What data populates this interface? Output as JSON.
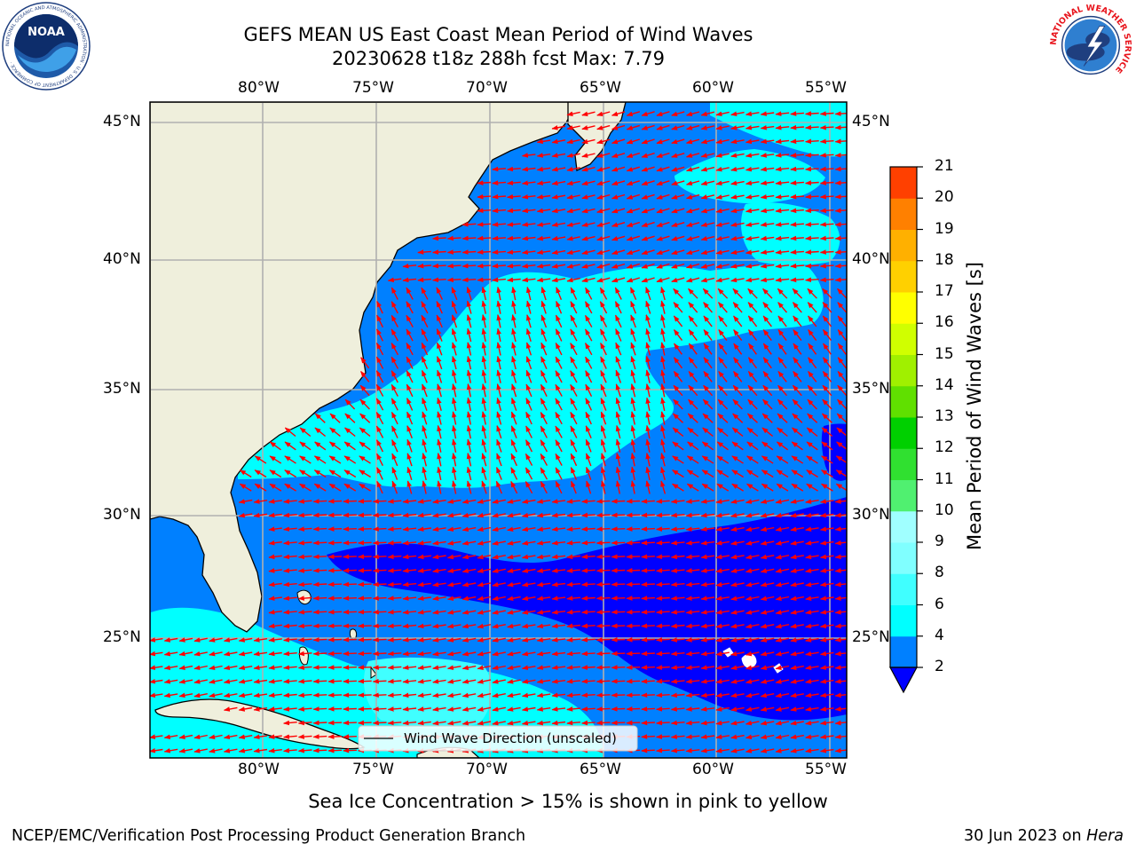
{
  "title": {
    "line1": "GEFS MEAN US East Coast Mean Period of Wind Waves",
    "line2": "20230628 t18z 288h fcst   Max: 7.79"
  },
  "map": {
    "lon_labels": [
      "80°W",
      "75°W",
      "70°W",
      "65°W",
      "60°W",
      "55°W"
    ],
    "lat_labels": [
      "45°N",
      "40°N",
      "35°N",
      "30°N",
      "25°N"
    ],
    "lon_range": [
      -85,
      -54.2
    ],
    "lat_range": [
      20.5,
      45.8
    ],
    "land_color": "#efefdc",
    "grid_color": "#b0b0b0",
    "arrow_color": "#ff0000",
    "legend_label": "Wind Wave Direction (unscaled)"
  },
  "colorbar": {
    "label": "Mean Period of Wind Waves [s]",
    "ticks": [
      "2",
      "4",
      "6",
      "8",
      "9",
      "10",
      "11",
      "12",
      "13",
      "14",
      "15",
      "16",
      "17",
      "18",
      "19",
      "20",
      "21"
    ],
    "colors": [
      "#0080ff",
      "#00ffff",
      "#40ffff",
      "#80ffff",
      "#a0ffff",
      "#50f070",
      "#30e030",
      "#00d000",
      "#60e000",
      "#a0f000",
      "#d0ff00",
      "#ffff00",
      "#ffd000",
      "#ffb000",
      "#ff8000",
      "#ff4000",
      "#ff1000",
      "#ff0000"
    ],
    "under_color": "#0000ff"
  },
  "caption": "Sea Ice Concentration > 15% is shown in pink to yellow",
  "footer": {
    "left": "NCEP/EMC/Verification Post Processing Product Generation Branch",
    "right_prefix": "30 Jun 2023 on ",
    "right_host": "Hera"
  },
  "logos": {
    "noaa": "NOAA",
    "noaa_ring": "NATIONAL OCEANIC AND ATMOSPHERIC ADMINISTRATION · U.S. DEPARTMENT OF COMMERCE ·",
    "nws_ring": "NATIONAL WEATHER SERVICE"
  }
}
